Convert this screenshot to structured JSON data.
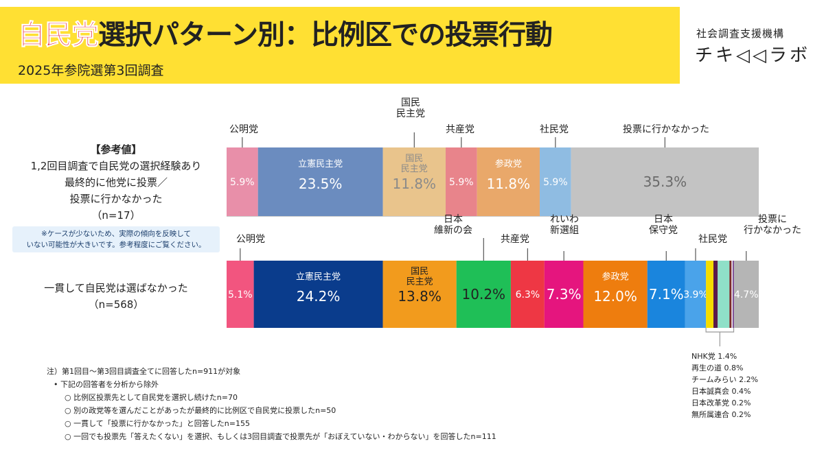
{
  "header": {
    "title_highlight": "自民党",
    "title_rest": "選択パターン別：比例区での投票行動",
    "subtitle": "2025年参院選第3回調査",
    "logo_top": "社会調査支援機構",
    "logo_main": "チキ◁◁ラボ"
  },
  "row_labels": {
    "row1": [
      "【参考値】",
      "1,2回目調査で自民党の選択経験あり",
      "最終的に他党に投票／",
      "投票に行かなかった",
      "（n=17）"
    ],
    "caveat": [
      "※ケースが少ないため、実際の傾向を反映して",
      "いない可能性が大きいです。参考程度にご覧ください。"
    ],
    "row2": [
      "一貫して自民党は選ばなかった",
      "（n=568）"
    ]
  },
  "notes": {
    "n0": "注）第1回目～第3回目調査全てに回答したn=911が対象",
    "n1": "•  下記の回答者を分析から除外",
    "n2": "○  比例区投票先として自民党を選択し続けたn=70",
    "n3": "○  別の政党等を選んだことがあったが最終的に比例区で自民党に投票したn=50",
    "n4": "○  一貫して「投票に行かなかった」と回答したn=155",
    "n5": "○  一回でも投票先「答えたくない」を選択、もしくは3回目調査で投票先が「おぼえていない・わからない」を回答したn=111"
  },
  "minor_parties": [
    "NHK党 1.4%",
    "再生の道 0.8%",
    "チームみらい 2.2%",
    "日本誠真会 0.4%",
    "日本改革党 0.2%",
    "無所属連合 0.2%"
  ],
  "chart_data": [
    {
      "type": "bar",
      "orientation": "horizontal-stacked-100",
      "row": "row1",
      "unit": "%",
      "segments": [
        {
          "name": "公明党",
          "inner_name": "",
          "value": 5.9,
          "label": "5.9%",
          "color": "#e88fa9",
          "text_color": "#ffffff"
        },
        {
          "name": "",
          "inner_name": "立憲民主党",
          "value": 23.5,
          "label": "23.5%",
          "color": "#6b8cbf",
          "text_color": "#ffffff"
        },
        {
          "name": "国民\n民主党",
          "inner_name": "国民\n民主党",
          "value": 11.8,
          "label": "11.8%",
          "color": "#e9c48c",
          "text_color": "#8a8a8a"
        },
        {
          "name": "共産党",
          "inner_name": "",
          "value": 5.9,
          "label": "5.9%",
          "color": "#e8848b",
          "text_color": "#ffffff"
        },
        {
          "name": "",
          "inner_name": "参政党",
          "value": 11.8,
          "label": "11.8%",
          "color": "#e9a86a",
          "text_color": "#ffffff"
        },
        {
          "name": "社民党",
          "inner_name": "",
          "value": 5.9,
          "label": "5.9%",
          "color": "#8fbce2",
          "text_color": "#ffffff"
        },
        {
          "name": "投票に行かなかった",
          "inner_name": "",
          "value": 35.3,
          "label": "35.3%",
          "color": "#c3c3c3",
          "text_color": "#6a6a6a"
        }
      ]
    },
    {
      "type": "bar",
      "orientation": "horizontal-stacked-100",
      "row": "row2",
      "unit": "%",
      "segments": [
        {
          "name": "公明党",
          "inner_name": "",
          "value": 5.1,
          "label": "5.1%",
          "color": "#f2557f",
          "text_color": "#ffffff"
        },
        {
          "name": "",
          "inner_name": "立憲民主党",
          "value": 24.2,
          "label": "24.2%",
          "color": "#0a3c8c",
          "text_color": "#ffffff"
        },
        {
          "name": "",
          "inner_name": "国民\n民主党",
          "value": 13.8,
          "label": "13.8%",
          "color": "#f29b1d",
          "text_color": "#222222"
        },
        {
          "name": "日本\n維新の会",
          "inner_name": "",
          "value": 10.2,
          "label": "10.2%",
          "color": "#1fbf57",
          "text_color": "#222222"
        },
        {
          "name": "共産党",
          "inner_name": "",
          "value": 6.3,
          "label": "6.3%",
          "color": "#ee3744",
          "text_color": "#ffffff"
        },
        {
          "name": "れいわ\n新選組",
          "inner_name": "",
          "value": 7.3,
          "label": "7.3%",
          "color": "#e5157e",
          "text_color": "#ffffff"
        },
        {
          "name": "",
          "inner_name": "参政党",
          "value": 12.0,
          "label": "12.0%",
          "color": "#ee7d0e",
          "text_color": "#ffffff"
        },
        {
          "name": "日本\n保守党",
          "inner_name": "",
          "value": 7.1,
          "label": "7.1%",
          "color": "#1a85dd",
          "text_color": "#ffffff"
        },
        {
          "name": "社民党",
          "inner_name": "",
          "value": 3.9,
          "label": "3.9%",
          "color": "#4aa3ea",
          "text_color": "#ffffff"
        },
        {
          "name": "NHK党",
          "inner_name": "",
          "value": 1.4,
          "label": "",
          "color": "#f4dd00",
          "text_color": "#ffffff"
        },
        {
          "name": "再生の道",
          "inner_name": "",
          "value": 0.8,
          "label": "",
          "color": "#5a1a4a",
          "text_color": "#ffffff"
        },
        {
          "name": "チームみらい",
          "inner_name": "",
          "value": 2.2,
          "label": "",
          "color": "#8fe0c8",
          "text_color": "#ffffff"
        },
        {
          "name": "日本誠真会",
          "inner_name": "",
          "value": 0.4,
          "label": "",
          "color": "#7a2b2b",
          "text_color": "#ffffff"
        },
        {
          "name": "日本改革党",
          "inner_name": "",
          "value": 0.2,
          "label": "",
          "color": "#ffffff",
          "text_color": "#ffffff"
        },
        {
          "name": "無所属連合",
          "inner_name": "",
          "value": 0.2,
          "label": "",
          "color": "#6a2d8c",
          "text_color": "#ffffff"
        },
        {
          "name": "投票に\n行かなかった",
          "inner_name": "",
          "value": 4.7,
          "label": "4.7%",
          "color": "#b5b5b5",
          "text_color": "#ffffff"
        }
      ]
    }
  ]
}
